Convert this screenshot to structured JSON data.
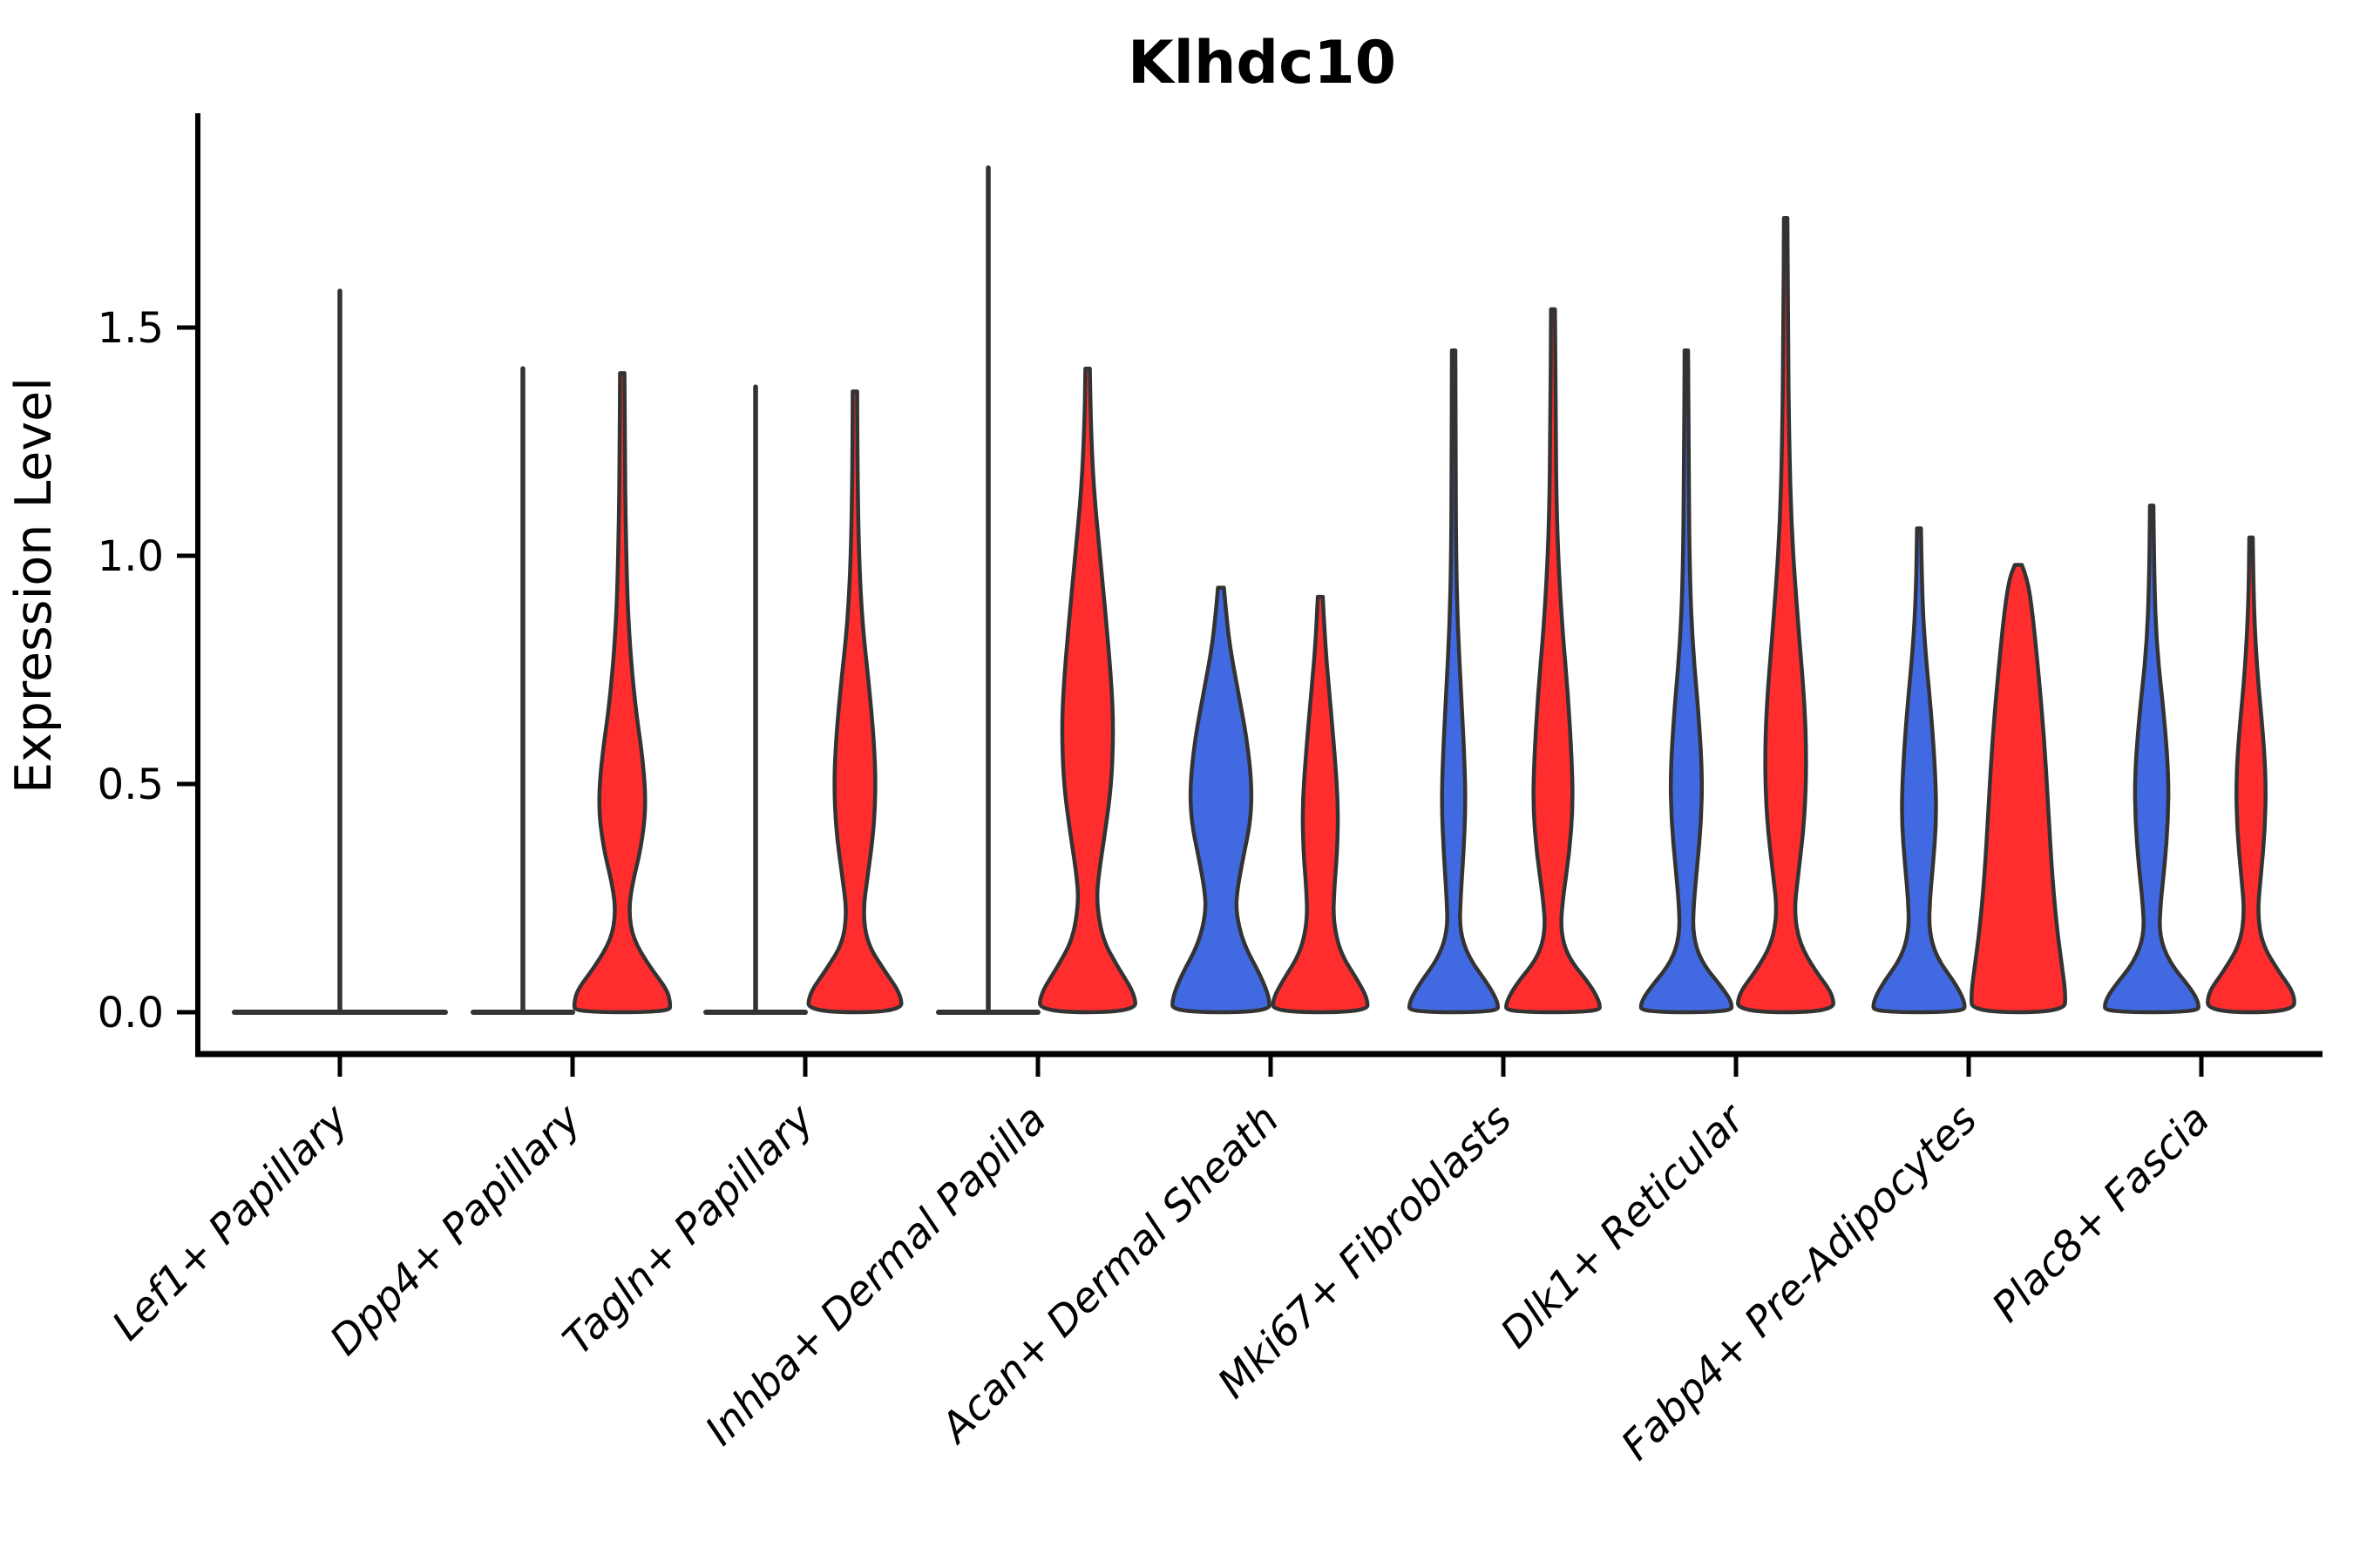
{
  "title": "Klhdc10",
  "axes": {
    "ylabel": "Expression Level",
    "ytick_labels": [
      "0.0",
      "0.5",
      "1.0",
      "1.5"
    ],
    "ytick_values": [
      0.0,
      0.5,
      1.0,
      1.5
    ]
  },
  "colors": {
    "blue_fill": "#4169E1",
    "red_fill": "#FF2D2D",
    "edge": "#333333",
    "axis": "#000000"
  },
  "chart_data": {
    "type": "violin",
    "title": "Klhdc10",
    "ylabel": "Expression Level",
    "ylim": [
      -0.09,
      1.97
    ],
    "yticks": [
      0.0,
      0.5,
      1.0,
      1.5
    ],
    "grid": false,
    "legend": "none",
    "categories": [
      "Lef1+ Papillary",
      "Dpp4+ Papillary",
      "Tagln+ Papillary",
      "Inhba+ Dermal Papilla",
      "Acan+ Dermal Sheath",
      "Mki67+ Fibroblasts",
      "Dlk1+ Reticular",
      "Fabp4+ Pre-Adipocytes",
      "Plac8+ Fascia"
    ],
    "groups": [
      {
        "category": "Lef1+ Papillary",
        "violins": [
          {
            "hue": "none",
            "single": true,
            "flat": true,
            "max": 1.58
          }
        ]
      },
      {
        "category": "Dpp4+ Papillary",
        "violins": [
          {
            "hue": "blue",
            "flat": true,
            "max": 1.41
          },
          {
            "hue": "red",
            "flat": false,
            "max": 1.4,
            "profile": [
              [
                1.4,
                0.045
              ],
              [
                1.25,
                0.05
              ],
              [
                1.05,
                0.07
              ],
              [
                0.85,
                0.12
              ],
              [
                0.68,
                0.25
              ],
              [
                0.55,
                0.42
              ],
              [
                0.45,
                0.48
              ],
              [
                0.36,
                0.38
              ],
              [
                0.28,
                0.2
              ],
              [
                0.22,
                0.13
              ],
              [
                0.16,
                0.22
              ],
              [
                0.1,
                0.55
              ],
              [
                0.05,
                0.9
              ],
              [
                0.02,
                0.97
              ],
              [
                0.0,
                0.95
              ]
            ]
          }
        ]
      },
      {
        "category": "Tagln+ Papillary",
        "violins": [
          {
            "hue": "blue",
            "flat": true,
            "max": 1.37
          },
          {
            "hue": "red",
            "flat": false,
            "max": 1.36,
            "profile": [
              [
                1.36,
                0.045
              ],
              [
                1.2,
                0.05
              ],
              [
                1.0,
                0.08
              ],
              [
                0.85,
                0.15
              ],
              [
                0.72,
                0.28
              ],
              [
                0.6,
                0.38
              ],
              [
                0.5,
                0.42
              ],
              [
                0.4,
                0.38
              ],
              [
                0.3,
                0.26
              ],
              [
                0.22,
                0.16
              ],
              [
                0.15,
                0.25
              ],
              [
                0.09,
                0.6
              ],
              [
                0.04,
                0.92
              ],
              [
                0.0,
                0.95
              ]
            ]
          }
        ]
      },
      {
        "category": "Inhba+ Dermal Papilla",
        "violins": [
          {
            "hue": "blue",
            "flat": true,
            "max": 1.85
          },
          {
            "hue": "red",
            "flat": false,
            "max": 1.41,
            "profile": [
              [
                1.41,
                0.045
              ],
              [
                1.3,
                0.06
              ],
              [
                1.15,
                0.12
              ],
              [
                1.0,
                0.25
              ],
              [
                0.85,
                0.38
              ],
              [
                0.72,
                0.48
              ],
              [
                0.62,
                0.52
              ],
              [
                0.5,
                0.48
              ],
              [
                0.4,
                0.36
              ],
              [
                0.3,
                0.22
              ],
              [
                0.24,
                0.18
              ],
              [
                0.16,
                0.3
              ],
              [
                0.1,
                0.6
              ],
              [
                0.04,
                0.95
              ],
              [
                0.0,
                0.97
              ]
            ]
          }
        ]
      },
      {
        "category": "Acan+ Dermal Sheath",
        "violins": [
          {
            "hue": "blue",
            "flat": false,
            "max": 0.93,
            "profile": [
              [
                0.93,
                0.06
              ],
              [
                0.88,
                0.1
              ],
              [
                0.8,
                0.18
              ],
              [
                0.7,
                0.35
              ],
              [
                0.6,
                0.52
              ],
              [
                0.5,
                0.62
              ],
              [
                0.42,
                0.6
              ],
              [
                0.34,
                0.45
              ],
              [
                0.27,
                0.33
              ],
              [
                0.22,
                0.3
              ],
              [
                0.15,
                0.45
              ],
              [
                0.08,
                0.8
              ],
              [
                0.03,
                0.98
              ],
              [
                0.0,
                0.97
              ]
            ]
          },
          {
            "hue": "red",
            "flat": false,
            "max": 0.91,
            "profile": [
              [
                0.91,
                0.05
              ],
              [
                0.8,
                0.1
              ],
              [
                0.68,
                0.2
              ],
              [
                0.55,
                0.3
              ],
              [
                0.45,
                0.36
              ],
              [
                0.35,
                0.34
              ],
              [
                0.27,
                0.28
              ],
              [
                0.2,
                0.26
              ],
              [
                0.13,
                0.4
              ],
              [
                0.07,
                0.75
              ],
              [
                0.03,
                0.95
              ],
              [
                0.0,
                0.95
              ]
            ]
          }
        ]
      },
      {
        "category": "Mki67+ Fibroblasts",
        "violins": [
          {
            "hue": "blue",
            "flat": false,
            "max": 1.45,
            "profile": [
              [
                1.45,
                0.035
              ],
              [
                1.2,
                0.04
              ],
              [
                1.0,
                0.05
              ],
              [
                0.85,
                0.08
              ],
              [
                0.7,
                0.15
              ],
              [
                0.55,
                0.22
              ],
              [
                0.45,
                0.24
              ],
              [
                0.35,
                0.2
              ],
              [
                0.25,
                0.14
              ],
              [
                0.18,
                0.12
              ],
              [
                0.12,
                0.3
              ],
              [
                0.06,
                0.7
              ],
              [
                0.02,
                0.9
              ],
              [
                0.0,
                0.88
              ]
            ]
          },
          {
            "hue": "red",
            "flat": false,
            "max": 1.54,
            "profile": [
              [
                1.54,
                0.04
              ],
              [
                1.3,
                0.05
              ],
              [
                1.05,
                0.08
              ],
              [
                0.85,
                0.18
              ],
              [
                0.7,
                0.3
              ],
              [
                0.55,
                0.38
              ],
              [
                0.45,
                0.4
              ],
              [
                0.35,
                0.33
              ],
              [
                0.25,
                0.2
              ],
              [
                0.18,
                0.15
              ],
              [
                0.12,
                0.3
              ],
              [
                0.06,
                0.75
              ],
              [
                0.02,
                0.95
              ],
              [
                0.0,
                0.93
              ]
            ]
          }
        ]
      },
      {
        "category": "Dlk1+ Reticular",
        "violins": [
          {
            "hue": "blue",
            "flat": false,
            "max": 1.45,
            "profile": [
              [
                1.45,
                0.035
              ],
              [
                1.2,
                0.045
              ],
              [
                0.95,
                0.07
              ],
              [
                0.8,
                0.13
              ],
              [
                0.65,
                0.25
              ],
              [
                0.52,
                0.32
              ],
              [
                0.42,
                0.3
              ],
              [
                0.32,
                0.22
              ],
              [
                0.24,
                0.15
              ],
              [
                0.17,
                0.13
              ],
              [
                0.11,
                0.3
              ],
              [
                0.05,
                0.75
              ],
              [
                0.02,
                0.92
              ],
              [
                0.0,
                0.9
              ]
            ]
          },
          {
            "hue": "red",
            "flat": false,
            "max": 1.74,
            "profile": [
              [
                1.74,
                0.035
              ],
              [
                1.5,
                0.045
              ],
              [
                1.25,
                0.07
              ],
              [
                1.05,
                0.12
              ],
              [
                0.85,
                0.25
              ],
              [
                0.68,
                0.38
              ],
              [
                0.55,
                0.42
              ],
              [
                0.42,
                0.38
              ],
              [
                0.3,
                0.25
              ],
              [
                0.22,
                0.17
              ],
              [
                0.15,
                0.28
              ],
              [
                0.09,
                0.6
              ],
              [
                0.04,
                0.95
              ],
              [
                0.0,
                0.97
              ]
            ]
          }
        ]
      },
      {
        "category": "Fabp4+ Pre-Adipocytes",
        "violins": [
          {
            "hue": "blue",
            "flat": false,
            "max": 1.06,
            "profile": [
              [
                1.06,
                0.04
              ],
              [
                0.92,
                0.06
              ],
              [
                0.8,
                0.12
              ],
              [
                0.65,
                0.25
              ],
              [
                0.52,
                0.33
              ],
              [
                0.42,
                0.35
              ],
              [
                0.32,
                0.28
              ],
              [
                0.25,
                0.22
              ],
              [
                0.18,
                0.2
              ],
              [
                0.12,
                0.35
              ],
              [
                0.06,
                0.75
              ],
              [
                0.02,
                0.93
              ],
              [
                0.0,
                0.9
              ]
            ]
          },
          {
            "hue": "red",
            "flat": false,
            "max": 0.98,
            "profile": [
              [
                0.98,
                0.07
              ],
              [
                0.95,
                0.18
              ],
              [
                0.88,
                0.28
              ],
              [
                0.75,
                0.4
              ],
              [
                0.6,
                0.52
              ],
              [
                0.45,
                0.6
              ],
              [
                0.3,
                0.68
              ],
              [
                0.18,
                0.78
              ],
              [
                0.1,
                0.88
              ],
              [
                0.04,
                0.95
              ],
              [
                0.0,
                0.93
              ]
            ]
          }
        ]
      },
      {
        "category": "Plac8+ Fascia",
        "violins": [
          {
            "hue": "blue",
            "flat": false,
            "max": 1.11,
            "profile": [
              [
                1.11,
                0.035
              ],
              [
                0.95,
                0.05
              ],
              [
                0.8,
                0.1
              ],
              [
                0.65,
                0.25
              ],
              [
                0.52,
                0.34
              ],
              [
                0.42,
                0.33
              ],
              [
                0.32,
                0.26
              ],
              [
                0.24,
                0.18
              ],
              [
                0.17,
                0.15
              ],
              [
                0.11,
                0.35
              ],
              [
                0.05,
                0.8
              ],
              [
                0.02,
                0.95
              ],
              [
                0.0,
                0.93
              ]
            ]
          },
          {
            "hue": "red",
            "flat": false,
            "max": 1.04,
            "profile": [
              [
                1.04,
                0.035
              ],
              [
                0.9,
                0.05
              ],
              [
                0.75,
                0.12
              ],
              [
                0.6,
                0.25
              ],
              [
                0.5,
                0.3
              ],
              [
                0.4,
                0.28
              ],
              [
                0.3,
                0.2
              ],
              [
                0.22,
                0.13
              ],
              [
                0.15,
                0.22
              ],
              [
                0.09,
                0.55
              ],
              [
                0.04,
                0.88
              ],
              [
                0.0,
                0.86
              ]
            ]
          }
        ]
      }
    ]
  }
}
